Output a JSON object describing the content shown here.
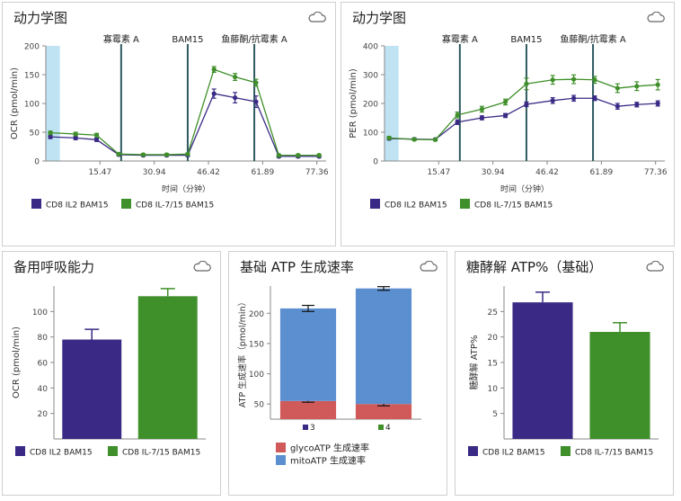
{
  "colors": {
    "purple": "#3a2a85",
    "green": "#3f8f2a",
    "blue": "#5b8fcf",
    "red": "#d0595a",
    "vline": "#2f5a62",
    "shade": "#bfe3f3",
    "axis": "#888888"
  },
  "icons": {
    "cloud": "cloud-icon"
  },
  "chart_data": [
    {
      "type": "line",
      "title": "动力学图",
      "xlabel": "时间（分钟）",
      "ylabel": "OCR (pmol/min)",
      "xlim": [
        0,
        80
      ],
      "ylim": [
        0,
        200
      ],
      "xticks": [
        "15.47",
        "30.94",
        "46.42",
        "61.89",
        "77.36"
      ],
      "xtick_values": [
        15.47,
        30.94,
        46.42,
        61.89,
        77.36
      ],
      "yticks": [
        0,
        50,
        100,
        150,
        200
      ],
      "injections": [
        {
          "label": "寡霉素 A",
          "x": 21.5
        },
        {
          "label": "BAM15",
          "x": 40.5
        },
        {
          "label": "鱼藤酮/抗霉素 A",
          "x": 59.5
        }
      ],
      "series": [
        {
          "name": "CD8 IL2 BAM15",
          "color": "purple",
          "x": [
            1.3,
            8.5,
            14.5,
            20.8,
            27.8,
            34.5,
            40.5,
            48,
            54,
            60,
            66.5,
            72,
            78
          ],
          "y": [
            42,
            40,
            37,
            11,
            10,
            10,
            10,
            117,
            110,
            103,
            8,
            8,
            8
          ],
          "err": [
            3,
            3,
            3,
            2,
            2,
            2,
            2,
            8,
            9,
            10,
            2,
            2,
            2
          ]
        },
        {
          "name": "CD8 IL-7/15 BAM15",
          "color": "green",
          "x": [
            1.3,
            8.5,
            14.5,
            20.8,
            27.8,
            34.5,
            40.5,
            48,
            54,
            60,
            66.5,
            72,
            78
          ],
          "y": [
            49,
            47,
            45,
            12,
            11,
            11,
            12,
            159,
            146,
            136,
            10,
            10,
            10
          ],
          "err": [
            3,
            3,
            3,
            2,
            2,
            2,
            2,
            5,
            6,
            6,
            2,
            2,
            2
          ]
        }
      ]
    },
    {
      "type": "line",
      "title": "动力学图",
      "xlabel": "时间（分钟）",
      "ylabel": "PER (pmol/min)",
      "xlim": [
        0,
        80
      ],
      "ylim": [
        0,
        400
      ],
      "xticks": [
        "15.47",
        "30.94",
        "46.42",
        "61.89",
        "77.36"
      ],
      "xtick_values": [
        15.47,
        30.94,
        46.42,
        61.89,
        77.36
      ],
      "yticks": [
        0,
        100,
        200,
        300,
        400
      ],
      "injections": [
        {
          "label": "寡霉素 A",
          "x": 21.5
        },
        {
          "label": "BAM15",
          "x": 40.5
        },
        {
          "label": "鱼藤酮/抗霉素 A",
          "x": 59.5
        }
      ],
      "series": [
        {
          "name": "CD8 IL2 BAM15",
          "color": "purple",
          "x": [
            1.3,
            8.5,
            14.5,
            20.8,
            27.8,
            34.5,
            40.5,
            48,
            54,
            60,
            66.5,
            72,
            78
          ],
          "y": [
            78,
            76,
            75,
            135,
            150,
            158,
            197,
            210,
            218,
            218,
            190,
            196,
            200
          ],
          "err": [
            5,
            4,
            4,
            8,
            7,
            7,
            8,
            10,
            10,
            8,
            10,
            8,
            9
          ]
        },
        {
          "name": "CD8 IL-7/15 BAM15",
          "color": "green",
          "x": [
            1.3,
            8.5,
            14.5,
            20.8,
            27.8,
            34.5,
            40.5,
            48,
            54,
            60,
            66.5,
            72,
            78
          ],
          "y": [
            80,
            75,
            74,
            160,
            180,
            205,
            268,
            282,
            284,
            282,
            253,
            260,
            265
          ],
          "err": [
            5,
            4,
            4,
            10,
            10,
            10,
            20,
            15,
            15,
            12,
            15,
            15,
            18
          ]
        }
      ]
    },
    {
      "type": "bar",
      "title": "备用呼吸能力",
      "ylabel": "OCR (pmol/min)",
      "ylim": [
        0,
        120
      ],
      "yticks": [
        20,
        40,
        60,
        80,
        100
      ],
      "categories": [
        "CD8 IL2 BAM15",
        "CD8 IL-7/15 BAM15"
      ],
      "values": [
        78,
        112
      ],
      "err": [
        8,
        6
      ],
      "bar_colors": [
        "purple",
        "green"
      ]
    },
    {
      "type": "bar",
      "stacked": true,
      "title": "基础 ATP 生成速率",
      "ylabel": "ATP 生成速率（pmol/min）",
      "ylim": [
        25,
        245
      ],
      "yticks": [
        50,
        100,
        150,
        200
      ],
      "categories": [
        "3",
        "4"
      ],
      "category_colors": [
        "purple",
        "green"
      ],
      "series": [
        {
          "name": "glycoATP 生成速率",
          "color": "red",
          "values": [
            55,
            50
          ],
          "err": [
            2,
            3
          ]
        },
        {
          "name": "mitoATP 生成速率",
          "color": "blue",
          "values": [
            153,
            191
          ],
          "err": [
            5,
            3
          ]
        }
      ]
    },
    {
      "type": "bar",
      "title": "糖酵解 ATP%（基础）",
      "ylabel": "糖酵解 ATP%",
      "ylim": [
        0,
        30
      ],
      "yticks": [
        5,
        10,
        15,
        20,
        25
      ],
      "categories": [
        "CD8 IL2 BAM15",
        "CD8 IL-7/15 BAM15"
      ],
      "values": [
        26.8,
        21
      ],
      "err": [
        2,
        1.8
      ],
      "bar_colors": [
        "purple",
        "green"
      ]
    }
  ]
}
